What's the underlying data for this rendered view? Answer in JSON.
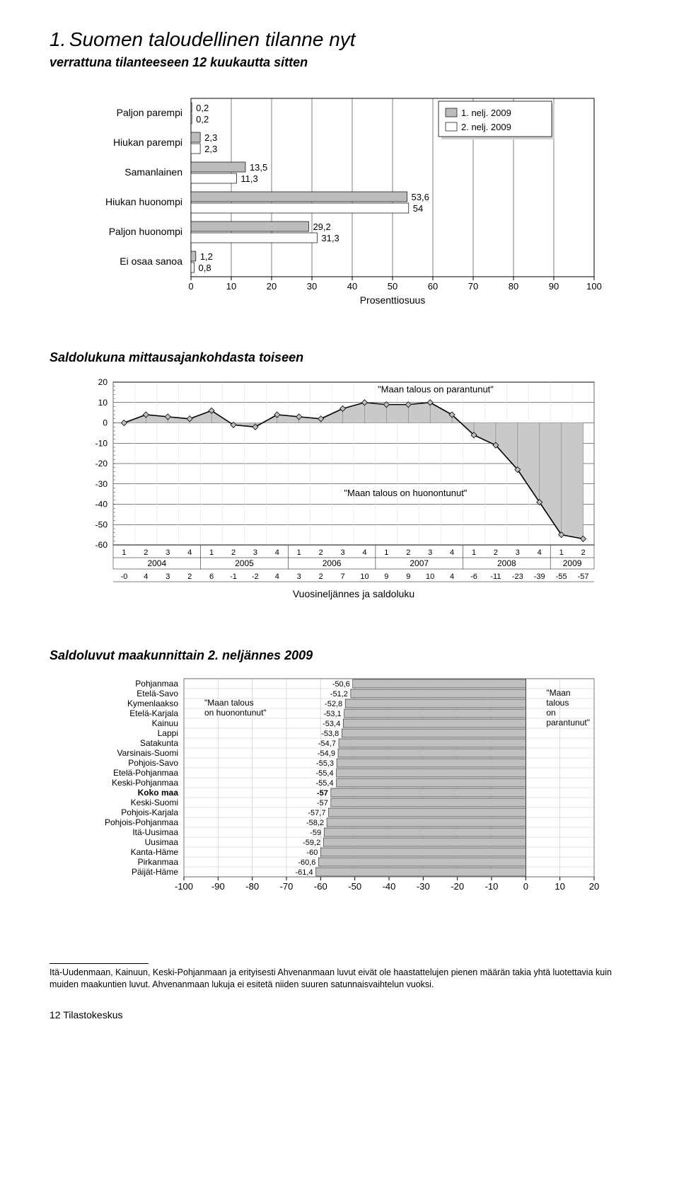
{
  "page": {
    "number_label": "1.",
    "title": "Suomen taloudellinen tilanne nyt",
    "subtitle": "verrattuna tilanteeseen 12 kuukautta sitten",
    "footer": "12   Tilastokeskus",
    "footnote": "Itä-Uudenmaan, Kainuun, Keski-Pohjanmaan ja erityisesti Ahvenanmaan luvut eivät ole haastattelujen pienen määrän takia yhtä luotettavia kuin muiden maakuntien luvut. Ahvenanmaan lukuja ei esitetä niiden suuren satunnaisvaihtelun vuoksi."
  },
  "chart1": {
    "type": "bar",
    "legend": {
      "items": [
        "1. nelj. 2009",
        "2. nelj. 2009"
      ]
    },
    "colors": {
      "series1": "#bcbcbc",
      "series2": "#ffffff",
      "border": "#000000",
      "grid": "#000000",
      "bg": "#ffffff"
    },
    "categories": [
      "Paljon parempi",
      "Hiukan parempi",
      "Samanlainen",
      "Hiukan huonompi",
      "Paljon huonompi",
      "Ei osaa sanoa"
    ],
    "series1": [
      0.2,
      2.3,
      13.5,
      53.6,
      29.2,
      1.2
    ],
    "series2": [
      0.2,
      2.3,
      11.3,
      54.0,
      31.3,
      0.8
    ],
    "value_labels": [
      [
        "0,2",
        "0,2"
      ],
      [
        "2,3",
        "2,3"
      ],
      [
        "13,5",
        "11,3"
      ],
      [
        "53,6",
        "54"
      ],
      [
        "29,2",
        "31,3"
      ],
      [
        "1,2",
        "0,8"
      ]
    ],
    "xlabel": "Prosenttiosuus",
    "xmin": 0,
    "xmax": 100,
    "xtick_step": 10,
    "label_fontsize": 14,
    "tick_fontsize": 13,
    "legend_fontsize": 13
  },
  "chart2": {
    "title": "Saldolukuna mittausajankohdasta toiseen",
    "type": "area-line",
    "colors": {
      "area": "#c9c9c9",
      "line": "#000000",
      "marker_fill": "#bfbfbf",
      "marker_stroke": "#000000",
      "grid": "#000000",
      "bg": "#ffffff"
    },
    "ymin": -60,
    "ymax": 20,
    "ytick_step": 10,
    "yticks": [
      "20",
      "10",
      "0",
      "-10",
      "-20",
      "-30",
      "-40",
      "-50",
      "-60"
    ],
    "quarters": [
      "1",
      "2",
      "3",
      "4",
      "1",
      "2",
      "3",
      "4",
      "1",
      "2",
      "3",
      "4",
      "1",
      "2",
      "3",
      "4",
      "1",
      "2",
      "3",
      "4",
      "1",
      "2"
    ],
    "years": [
      "2004",
      "2005",
      "2006",
      "2007",
      "2008",
      "2009"
    ],
    "values": [
      0,
      4,
      3,
      2,
      6,
      -1,
      -2,
      4,
      3,
      2,
      7,
      10,
      9,
      9,
      10,
      4,
      -6,
      -11,
      -23,
      -39,
      -55,
      -57
    ],
    "value_row": [
      "-0",
      "4",
      "3",
      "2",
      "6",
      "-1",
      "-2",
      "4",
      "3",
      "2",
      "7",
      "10",
      "9",
      "9",
      "10",
      "4",
      "-6",
      "-11",
      "-23",
      "-39",
      "-55",
      "-57"
    ],
    "annot_top": "\"Maan talous on parantunut\"",
    "annot_bot": "\"Maan talous on huonontunut\"",
    "xcaption": "Vuosineljännes ja saldoluku",
    "label_fontsize": 14,
    "tick_fontsize": 12
  },
  "chart3": {
    "title": "Saldoluvut maakunnittain 2. neljännes 2009",
    "type": "bar",
    "colors": {
      "bar": "#c0c0c0",
      "border": "#000000",
      "grid": "#bfbfbf",
      "bg": "#ffffff"
    },
    "xmin": -100,
    "xmax": 20,
    "xtick_step": 10,
    "annot_left": "\"Maan talous on huonontunut\"",
    "annot_right": "\"Maan talous on parantunut\"",
    "rows": [
      {
        "label": "Pohjanmaa",
        "value": -50.6,
        "text": "-50,6",
        "bold": false
      },
      {
        "label": "Etelä-Savo",
        "value": -51.2,
        "text": "-51,2",
        "bold": false
      },
      {
        "label": "Kymenlaakso",
        "value": -52.8,
        "text": "-52,8",
        "bold": false
      },
      {
        "label": "Etelä-Karjala",
        "value": -53.1,
        "text": "-53,1",
        "bold": false
      },
      {
        "label": "Kainuu",
        "value": -53.4,
        "text": "-53,4",
        "bold": false
      },
      {
        "label": "Lappi",
        "value": -53.8,
        "text": "-53,8",
        "bold": false
      },
      {
        "label": "Satakunta",
        "value": -54.7,
        "text": "-54,7",
        "bold": false
      },
      {
        "label": "Varsinais-Suomi",
        "value": -54.9,
        "text": "-54,9",
        "bold": false
      },
      {
        "label": "Pohjois-Savo",
        "value": -55.3,
        "text": "-55,3",
        "bold": false
      },
      {
        "label": "Etelä-Pohjanmaa",
        "value": -55.4,
        "text": "-55,4",
        "bold": false
      },
      {
        "label": "Keski-Pohjanmaa",
        "value": -55.4,
        "text": "-55,4",
        "bold": false
      },
      {
        "label": "Koko maa",
        "value": -57.0,
        "text": "-57",
        "bold": true
      },
      {
        "label": "Keski-Suomi",
        "value": -57.0,
        "text": "-57",
        "bold": false
      },
      {
        "label": "Pohjois-Karjala",
        "value": -57.7,
        "text": "-57,7",
        "bold": false
      },
      {
        "label": "Pohjois-Pohjanmaa",
        "value": -58.2,
        "text": "-58,2",
        "bold": false
      },
      {
        "label": "Itä-Uusimaa",
        "value": -59.0,
        "text": "-59",
        "bold": false
      },
      {
        "label": "Uusimaa",
        "value": -59.2,
        "text": "-59,2",
        "bold": false
      },
      {
        "label": "Kanta-Häme",
        "value": -60.0,
        "text": "-60",
        "bold": false
      },
      {
        "label": "Pirkanmaa",
        "value": -60.6,
        "text": "-60,6",
        "bold": false
      },
      {
        "label": "Päijät-Häme",
        "value": -61.4,
        "text": "-61,4",
        "bold": false
      }
    ],
    "label_fontsize": 12,
    "tick_fontsize": 13
  }
}
